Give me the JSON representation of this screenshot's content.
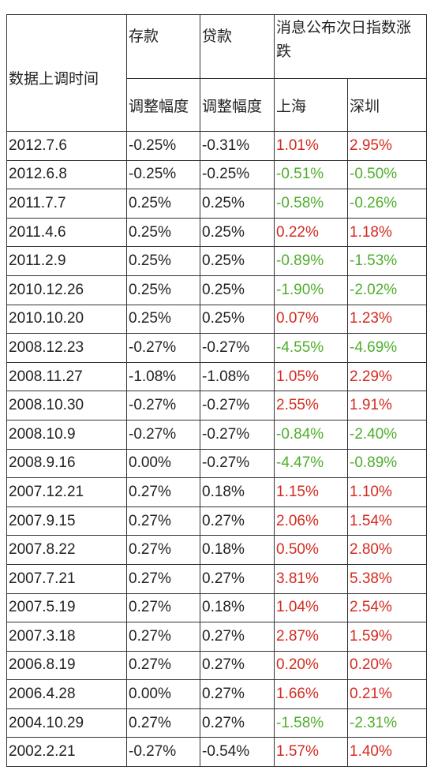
{
  "table": {
    "header": {
      "time": "数据上调时间",
      "deposit": "存款",
      "loan": "贷款",
      "market": "消息公布次日指数涨跌",
      "adjust_deposit": "调整幅度",
      "adjust_loan": "调整幅度",
      "shanghai": "上海",
      "shenzhen": "深圳"
    },
    "rows": [
      [
        "2012.7.6",
        "-0.25%",
        "-0.31%",
        "1.01%",
        "2.95%"
      ],
      [
        "2012.6.8",
        "-0.25%",
        "-0.25%",
        "-0.51%",
        "-0.50%"
      ],
      [
        "2011.7.7",
        "0.25%",
        "0.25%",
        "-0.58%",
        "-0.26%"
      ],
      [
        "2011.4.6",
        "0.25%",
        "0.25%",
        "0.22%",
        "1.18%"
      ],
      [
        "2011.2.9",
        "0.25%",
        "0.25%",
        "-0.89%",
        "-1.53%"
      ],
      [
        "2010.12.26",
        "0.25%",
        "0.25%",
        "-1.90%",
        "-2.02%"
      ],
      [
        "2010.10.20",
        "0.25%",
        "0.25%",
        "0.07%",
        "1.23%"
      ],
      [
        "2008.12.23",
        "-0.27%",
        "-0.27%",
        "-4.55%",
        "-4.69%"
      ],
      [
        "2008.11.27",
        "-1.08%",
        "-1.08%",
        "1.05%",
        "2.29%"
      ],
      [
        "2008.10.30",
        "-0.27%",
        "-0.27%",
        "2.55%",
        "1.91%"
      ],
      [
        "2008.10.9",
        "-0.27%",
        "-0.27%",
        "-0.84%",
        "-2.40%"
      ],
      [
        "2008.9.16",
        "0.00%",
        "-0.27%",
        "-4.47%",
        "-0.89%"
      ],
      [
        "2007.12.21",
        "0.27%",
        "0.18%",
        "1.15%",
        "1.10%"
      ],
      [
        "2007.9.15",
        "0.27%",
        "0.27%",
        "2.06%",
        "1.54%"
      ],
      [
        "2007.8.22",
        "0.27%",
        "0.18%",
        "0.50%",
        "2.80%"
      ],
      [
        "2007.7.21",
        "0.27%",
        "0.27%",
        "3.81%",
        "5.38%"
      ],
      [
        "2007.5.19",
        "0.27%",
        "0.18%",
        "1.04%",
        "2.54%"
      ],
      [
        "2007.3.18",
        "0.27%",
        "0.27%",
        "2.87%",
        "1.59%"
      ],
      [
        "2006.8.19",
        "0.27%",
        "0.27%",
        "0.20%",
        "0.20%"
      ],
      [
        "2006.4.28",
        "0.00%",
        "0.27%",
        "1.66%",
        "0.21%"
      ],
      [
        "2004.10.29",
        "0.27%",
        "0.27%",
        "-1.58%",
        "-2.31%"
      ],
      [
        "2002.2.21",
        "-0.27%",
        "-0.54%",
        "1.57%",
        "1.40%"
      ]
    ]
  }
}
